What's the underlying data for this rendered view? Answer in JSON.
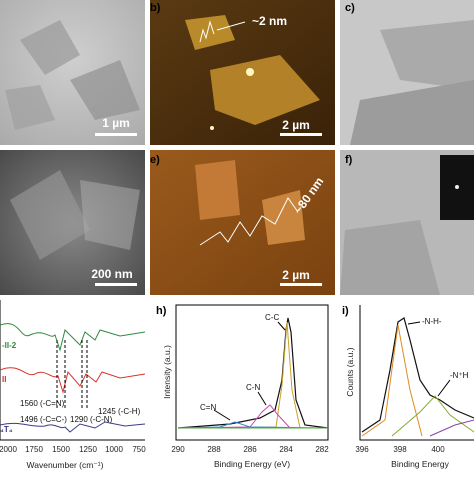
{
  "panels": {
    "a": {
      "scale_bar": "1 µm"
    },
    "b": {
      "label": "b)",
      "height": "~2 nm",
      "scale_bar": "2 µm"
    },
    "c": {
      "label": "c)"
    },
    "d": {
      "scale_bar": "200 nm"
    },
    "e": {
      "label": "e)",
      "height": "~80 nm",
      "scale_bar": "2 µm"
    },
    "f": {
      "label": "f)"
    },
    "g": {
      "series_labels": [
        "-II-2",
        "II",
        "₄T₄"
      ],
      "annotations": [
        "1560 (-C=N)",
        "1496 (-C=C-)",
        "1290 (-C-N)",
        "1245 (-C-H)"
      ],
      "xticks": [
        "2000",
        "1750",
        "1500",
        "1250",
        "1000",
        "750"
      ],
      "xlabel": "Wavenumber (cm⁻¹)"
    },
    "h": {
      "label": "h)",
      "ylabel": "Intensity (a.u.)",
      "xlabel": "Binding Energy (eV)",
      "xticks": [
        "290",
        "288",
        "286",
        "284",
        "282"
      ],
      "peaks": [
        "C-C",
        "C-N",
        "C=N"
      ]
    },
    "i": {
      "label": "i)",
      "ylabel": "Counts (a.u.)",
      "xlabel": "Binding Energy",
      "xticks": [
        "396",
        "398",
        "400"
      ],
      "peaks": [
        "-N-H-",
        "-N⁺H"
      ]
    }
  }
}
